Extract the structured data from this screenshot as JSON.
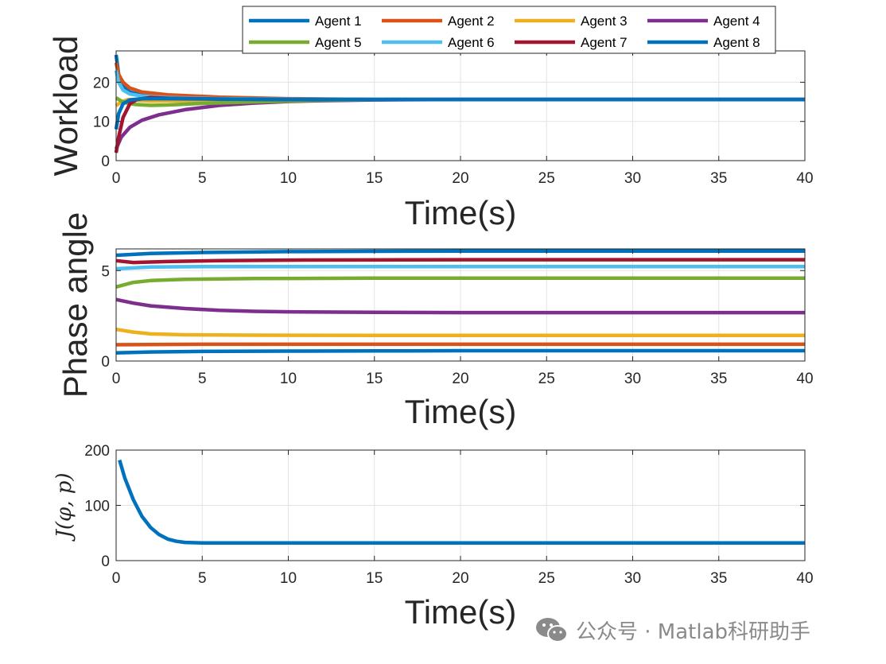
{
  "colors": {
    "agent1": "#0072BD",
    "agent2": "#D95319",
    "agent3": "#EDB120",
    "agent4": "#7E2F8E",
    "agent5": "#77AC30",
    "agent6": "#4DBEEE",
    "agent7": "#A2142F",
    "agent8": "#0072BD",
    "axis": "#262626",
    "grid": "#e3e3e3"
  },
  "watermark": {
    "text": "公众号 · Matlab科研助手",
    "icon": "wechat-icon"
  },
  "chart_data": [
    {
      "type": "line",
      "title": "",
      "xlabel": "Time(s)",
      "ylabel": "Workload",
      "xlim": [
        0,
        40
      ],
      "ylim": [
        0,
        28
      ],
      "xticks": [
        0,
        5,
        10,
        15,
        20,
        25,
        30,
        35,
        40
      ],
      "yticks": [
        0,
        10,
        20
      ],
      "grid": true,
      "legend": {
        "placement": "top",
        "columns": 4
      },
      "series": [
        {
          "name": "Agent 1",
          "x": [
            0,
            0.15,
            0.4,
            0.8,
            1.5,
            3,
            6,
            10,
            15,
            40
          ],
          "values": [
            27,
            22,
            19,
            17.5,
            16.7,
            16.2,
            15.9,
            15.7,
            15.6,
            15.6
          ]
        },
        {
          "name": "Agent 2",
          "x": [
            0,
            0.15,
            0.4,
            0.8,
            1.5,
            3,
            6,
            10,
            15,
            40
          ],
          "values": [
            25,
            22,
            20,
            18.5,
            17.5,
            16.8,
            16.2,
            15.8,
            15.6,
            15.6
          ]
        },
        {
          "name": "Agent 3",
          "x": [
            0,
            0.3,
            0.7,
            1.2,
            2,
            4,
            8,
            15,
            40
          ],
          "values": [
            14,
            15,
            15.6,
            15.4,
            15.2,
            15.3,
            15.5,
            15.6,
            15.6
          ]
        },
        {
          "name": "Agent 4",
          "x": [
            0,
            0.3,
            0.8,
            1.5,
            2.5,
            4,
            6,
            8,
            10,
            12,
            15,
            20,
            40
          ],
          "values": [
            3,
            6,
            8.5,
            10.3,
            11.7,
            13,
            14.1,
            14.7,
            15.1,
            15.3,
            15.5,
            15.6,
            15.6
          ]
        },
        {
          "name": "Agent 5",
          "x": [
            0,
            0.3,
            0.7,
            1.2,
            2,
            3,
            5,
            8,
            12,
            16,
            40
          ],
          "values": [
            16,
            15.2,
            14.6,
            14.3,
            14.1,
            14.2,
            14.6,
            15,
            15.4,
            15.6,
            15.6
          ]
        },
        {
          "name": "Agent 6",
          "x": [
            0,
            0.15,
            0.4,
            0.8,
            1.5,
            3,
            6,
            10,
            15,
            40
          ],
          "values": [
            23,
            20,
            18,
            17,
            16.5,
            16.1,
            15.8,
            15.7,
            15.6,
            15.6
          ]
        },
        {
          "name": "Agent 7",
          "x": [
            0,
            0.15,
            0.4,
            0.8,
            1.2,
            2,
            3,
            6,
            10,
            15,
            40
          ],
          "values": [
            2,
            6,
            11,
            14.5,
            15.6,
            16.1,
            15.9,
            15.7,
            15.6,
            15.6,
            15.6
          ]
        },
        {
          "name": "Agent 8",
          "x": [
            0,
            0.15,
            0.4,
            0.8,
            1.5,
            3,
            6,
            10,
            15,
            40
          ],
          "values": [
            8,
            12,
            14.5,
            15.5,
            15.8,
            15.8,
            15.7,
            15.6,
            15.6,
            15.6
          ]
        }
      ]
    },
    {
      "type": "line",
      "title": "",
      "xlabel": "Time(s)",
      "ylabel": "Phase angle",
      "xlim": [
        0,
        40
      ],
      "ylim": [
        0,
        6.2
      ],
      "xticks": [
        0,
        5,
        10,
        15,
        20,
        25,
        30,
        35,
        40
      ],
      "yticks": [
        0,
        5
      ],
      "grid": true,
      "series": [
        {
          "name": "Agent 1",
          "x": [
            0,
            2,
            5,
            10,
            15,
            20,
            40
          ],
          "values": [
            0.45,
            0.5,
            0.53,
            0.55,
            0.56,
            0.57,
            0.57
          ]
        },
        {
          "name": "Agent 2",
          "x": [
            0,
            5,
            40
          ],
          "values": [
            0.9,
            0.93,
            0.93
          ]
        },
        {
          "name": "Agent 3",
          "x": [
            0,
            1,
            2,
            4,
            8,
            15,
            40
          ],
          "values": [
            1.75,
            1.6,
            1.5,
            1.45,
            1.43,
            1.42,
            1.42
          ]
        },
        {
          "name": "Agent 4",
          "x": [
            0,
            1,
            2,
            4,
            6,
            8,
            10,
            15,
            20,
            40
          ],
          "values": [
            3.4,
            3.2,
            3.05,
            2.9,
            2.8,
            2.75,
            2.72,
            2.69,
            2.68,
            2.68
          ]
        },
        {
          "name": "Agent 5",
          "x": [
            0,
            1,
            2,
            4,
            8,
            15,
            40
          ],
          "values": [
            4.1,
            4.35,
            4.45,
            4.52,
            4.56,
            4.58,
            4.58
          ]
        },
        {
          "name": "Agent 6",
          "x": [
            0,
            2,
            5,
            40
          ],
          "values": [
            5.1,
            5.2,
            5.22,
            5.22
          ]
        },
        {
          "name": "Agent 7",
          "x": [
            0,
            1,
            3,
            6,
            10,
            20,
            40
          ],
          "values": [
            5.55,
            5.45,
            5.5,
            5.55,
            5.58,
            5.6,
            5.6
          ]
        },
        {
          "name": "Agent 8",
          "x": [
            0,
            2,
            5,
            10,
            15,
            20,
            40
          ],
          "values": [
            5.85,
            5.95,
            6.0,
            6.05,
            6.07,
            6.08,
            6.08
          ]
        }
      ]
    },
    {
      "type": "line",
      "title": "",
      "xlabel": "Time(s)",
      "ylabel": "J(φ, p)",
      "xlim": [
        0,
        40
      ],
      "ylim": [
        0,
        200
      ],
      "xticks": [
        0,
        5,
        10,
        15,
        20,
        25,
        30,
        35,
        40
      ],
      "yticks": [
        0,
        100,
        200
      ],
      "grid": true,
      "series": [
        {
          "name": "J",
          "x": [
            0.2,
            0.5,
            1,
            1.5,
            2,
            2.5,
            3,
            3.5,
            4,
            5,
            6,
            8,
            10,
            15,
            20,
            30,
            40
          ],
          "values": [
            182,
            150,
            110,
            80,
            60,
            47,
            39,
            35,
            33,
            32,
            32,
            32,
            32,
            32,
            32,
            32,
            32
          ]
        }
      ]
    }
  ]
}
